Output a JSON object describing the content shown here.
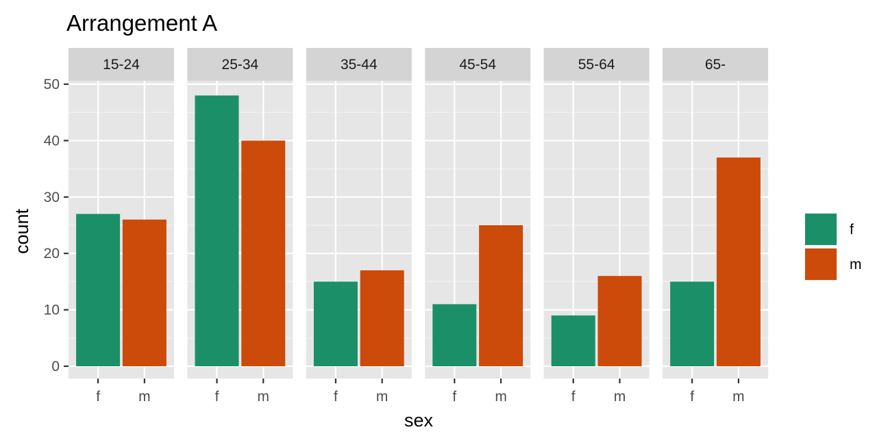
{
  "chart_data": {
    "type": "bar",
    "title": "Arrangement A",
    "xlabel": "sex",
    "ylabel": "count",
    "ylim": [
      0,
      55
    ],
    "yticks": [
      0,
      10,
      20,
      30,
      40,
      50
    ],
    "categories": [
      "f",
      "m"
    ],
    "facets": [
      {
        "label": "15-24",
        "values": [
          27,
          26
        ]
      },
      {
        "label": "25-34",
        "values": [
          48,
          40
        ]
      },
      {
        "label": "35-44",
        "values": [
          15,
          17
        ]
      },
      {
        "label": "45-54",
        "values": [
          11,
          25
        ]
      },
      {
        "label": "55-64",
        "values": [
          9,
          16
        ]
      },
      {
        "label": "65-",
        "values": [
          15,
          37
        ]
      }
    ],
    "legend": {
      "position": "right",
      "entries": [
        {
          "label": "f",
          "color": "#1b9068"
        },
        {
          "label": "m",
          "color": "#cc4a0a"
        }
      ]
    },
    "grid": true,
    "colors": {
      "panel_background": "#e6e6e6",
      "strip_background": "#d4d4d4",
      "grid_major": "#ffffff",
      "grid_minor": "#f2f2f2"
    }
  }
}
